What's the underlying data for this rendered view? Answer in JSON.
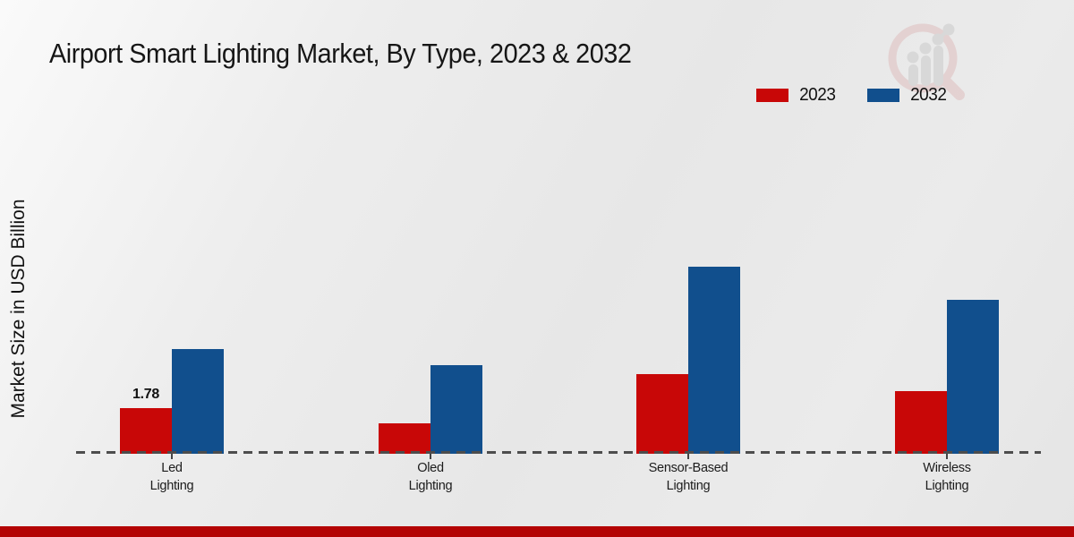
{
  "page": {
    "title": "Airport Smart Lighting Market, By Type, 2023 & 2032",
    "ylabel": "Market Size in USD Billion"
  },
  "legend": {
    "items": [
      {
        "label": "2023",
        "color": "#c80707"
      },
      {
        "label": "2032",
        "color": "#114f8d"
      }
    ]
  },
  "colors": {
    "red": "#c80707",
    "blue": "#114f8d",
    "bottom_band": "#b40404",
    "axis_dash": "#4d4d4d",
    "tick": "#444444",
    "logo_pink": "#ddb9b9",
    "logo_gray": "#c6c6c6"
  },
  "chart_data": {
    "type": "bar",
    "title": "Airport Smart Lighting Market, By Type, 2023 & 2032",
    "xlabel": "",
    "ylabel": "Market Size in USD Billion",
    "categories": [
      "Led Lighting",
      "Oled Lighting",
      "Sensor-Based Lighting",
      "Wireless Lighting"
    ],
    "category_lines": [
      [
        "Led",
        "Lighting"
      ],
      [
        "Oled",
        "Lighting"
      ],
      [
        "Sensor-Based",
        "Lighting"
      ],
      [
        "Wireless",
        "Lighting"
      ]
    ],
    "series": [
      {
        "name": "2023",
        "color": "#c80707",
        "values": [
          1.78,
          1.19,
          3.11,
          2.45
        ],
        "value_labels": [
          "1.78",
          null,
          null,
          null
        ]
      },
      {
        "name": "2032",
        "color": "#114f8d",
        "values": [
          4.08,
          3.45,
          7.3,
          6.0
        ],
        "value_labels": [
          null,
          null,
          null,
          null
        ]
      }
    ],
    "ylim": [
      0,
      8
    ],
    "grid": false,
    "y_axis_ticks_visible": false,
    "legend_position": "top-right",
    "baseline_style": "dashed"
  }
}
